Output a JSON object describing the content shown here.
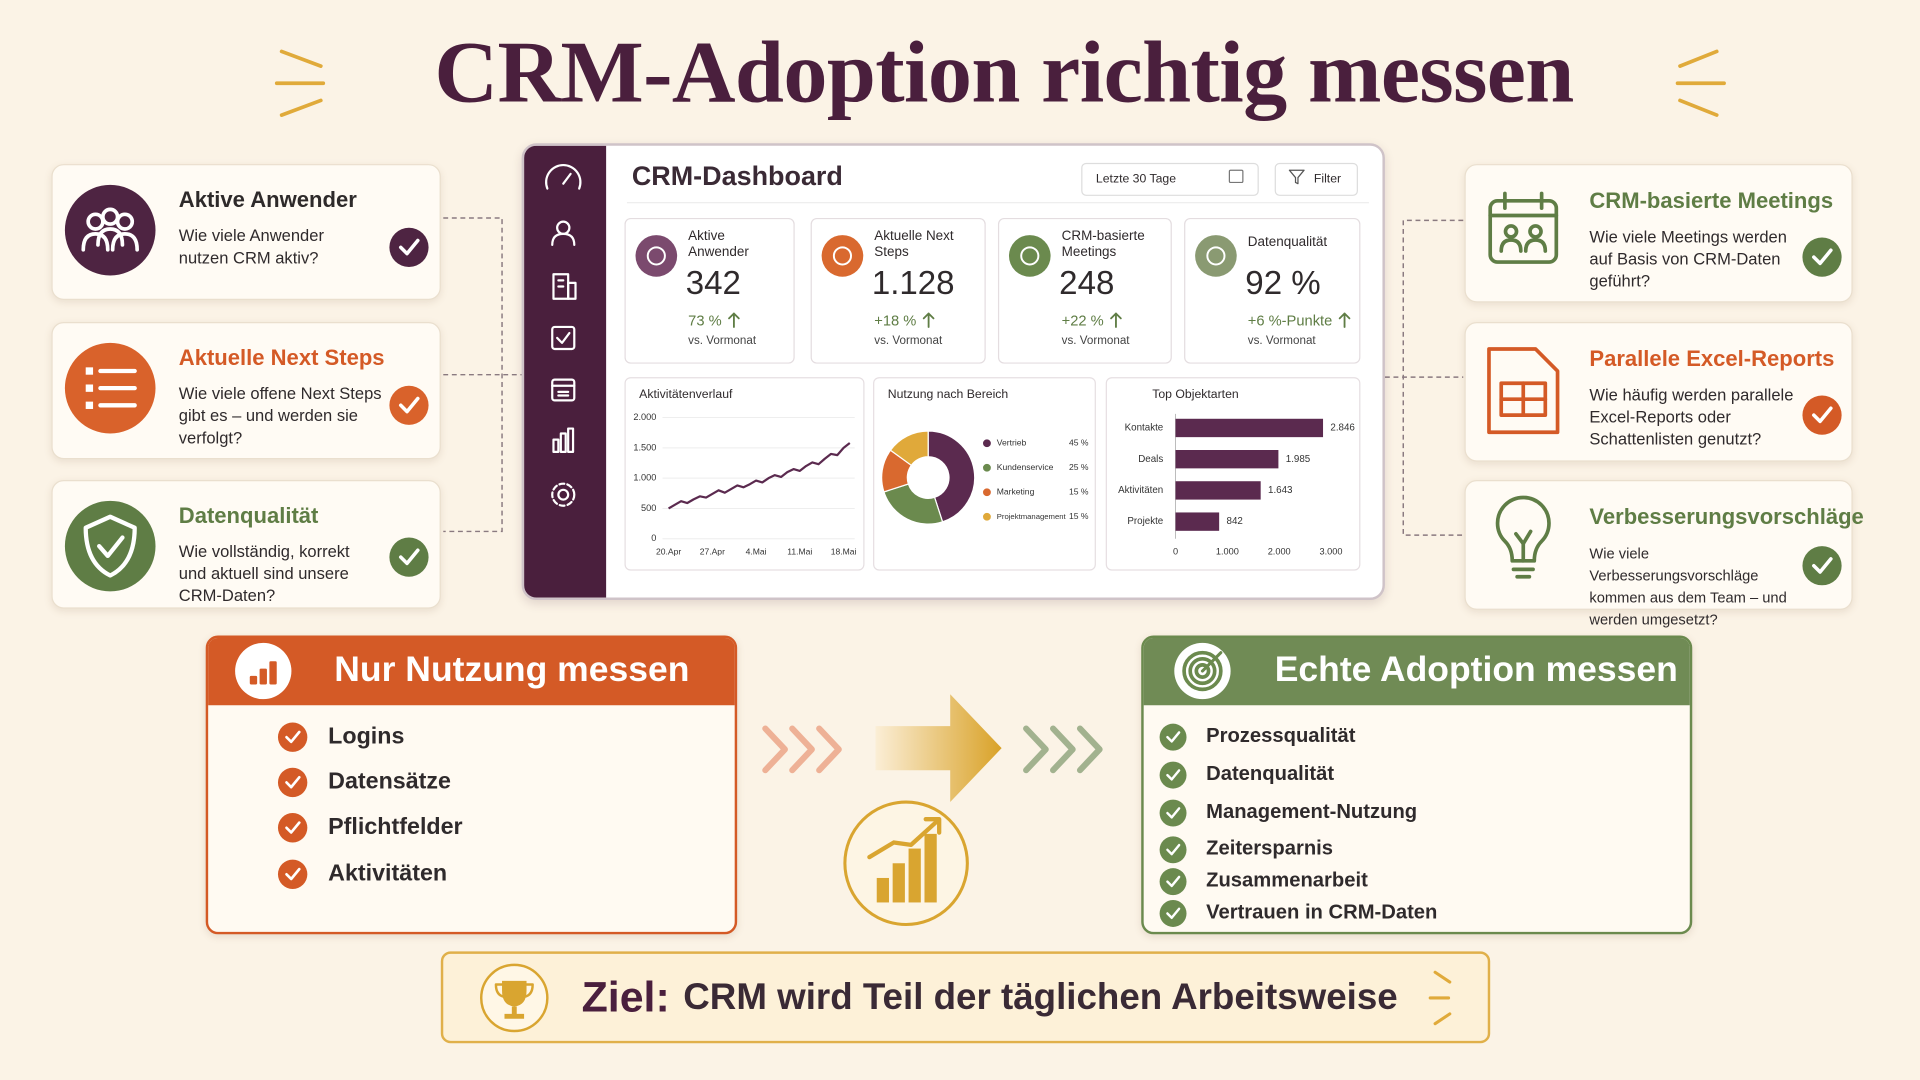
{
  "title": "CRM-Adoption richtig messen",
  "left_cards": [
    {
      "title": "Aktive Anwender",
      "text": "Wie viele Anwender nutzen CRM aktiv?"
    },
    {
      "title": "Aktuelle Next Steps",
      "text": "Wie viele offene Next Steps gibt es – und werden sie verfolgt?"
    },
    {
      "title": "Datenqualität",
      "text": "Wie vollständig, korrekt und aktuell sind unsere CRM-Daten?"
    }
  ],
  "right_cards": [
    {
      "title": "CRM-basierte Meetings",
      "text": "Wie viele Meetings werden auf Basis von CRM-Daten geführt?"
    },
    {
      "title": "Parallele Excel-Reports",
      "text": "Wie häufig werden parallele Excel-Reports oder Schattenlisten genutzt?"
    },
    {
      "title": "Verbesserungsvorschläge",
      "text": "Wie viele Verbesserungsvorschläge kommen aus dem Team – und werden umgesetzt?"
    }
  ],
  "dashboard": {
    "title": "CRM-Dashboard",
    "period": "Letzte 30 Tage",
    "filter": "Filter",
    "kpis": [
      {
        "label": "Aktive Anwender",
        "value": "342",
        "change": "73 %",
        "note": "vs. Vormonat"
      },
      {
        "label": "Aktuelle Next Steps",
        "value": "1.128",
        "change": "+18 %",
        "note": "vs. Vormonat"
      },
      {
        "label": "CRM-basierte Meetings",
        "value": "248",
        "change": "+22 %",
        "note": "vs. Vormonat"
      },
      {
        "label": "Datenqualität",
        "value": "92 %",
        "change": "+6 %-Punkte",
        "note": "vs. Vormonat"
      }
    ]
  },
  "chart_data": [
    {
      "type": "line",
      "title": "Aktivitätenverlauf",
      "categories": [
        "20.Apr",
        null,
        null,
        null,
        null,
        null,
        null,
        "27.Apr",
        null,
        null,
        null,
        null,
        null,
        null,
        "4.Mai",
        null,
        null,
        null,
        null,
        null,
        null,
        "11.Mai",
        null,
        null,
        null,
        null,
        null,
        null,
        "18.Mai",
        null
      ],
      "values": [
        500,
        560,
        620,
        590,
        650,
        700,
        680,
        740,
        800,
        760,
        820,
        880,
        850,
        900,
        960,
        930,
        1000,
        1050,
        1020,
        1100,
        1150,
        1120,
        1200,
        1260,
        1230,
        1320,
        1400,
        1380,
        1500,
        1580
      ],
      "color": "#5b2a4f",
      "ylim": [
        0,
        2000
      ],
      "yticks": [
        0,
        500,
        {
          "value": 1000,
          "label": "1.000"
        },
        {
          "value": 1500,
          "label": "1.500"
        },
        {
          "value": 2000,
          "label": "2.000"
        }
      ],
      "grid": true
    },
    {
      "type": "pie",
      "title": "Nutzung nach Bereich",
      "donut": true,
      "categories": [
        "Vertrieb",
        "Kundenservice",
        "Marketing",
        "Projektmanagement"
      ],
      "values": [
        45,
        25,
        15,
        15
      ],
      "value_labels": [
        "45 %",
        "25 %",
        "15 %",
        "15 %"
      ],
      "colors": [
        "#5b2a4f",
        "#6b8a4e",
        "#d9692f",
        "#e0a93a"
      ]
    },
    {
      "type": "bar",
      "orientation": "horizontal",
      "title": "Top Objektarten",
      "categories": [
        "Kontakte",
        "Deals",
        "Aktivitäten",
        "Projekte"
      ],
      "values": [
        2846,
        1985,
        1643,
        842
      ],
      "value_labels": [
        "2.846",
        "1.985",
        "1.643",
        "842"
      ],
      "color": "#5b2a4f",
      "xlim": [
        0,
        3000
      ],
      "xticks": [
        0,
        {
          "value": 1000,
          "label": "1.000"
        },
        {
          "value": 2000,
          "label": "2.000"
        },
        {
          "value": 3000,
          "label": "3.000"
        }
      ]
    }
  ],
  "usage_panel": {
    "title": "Nur Nutzung messen",
    "items": [
      "Logins",
      "Datensätze",
      "Pflichtfelder",
      "Aktivitäten"
    ]
  },
  "adoption_panel": {
    "title": "Echte Adoption messen",
    "items": [
      "Prozessqualität",
      "Datenqualität",
      "Management-Nutzung",
      "Zeitersparnis",
      "Zusammenarbeit",
      "Vertrauen in CRM-Daten"
    ]
  },
  "goal": {
    "label": "Ziel:",
    "text": "CRM wird Teil der täglichen Arbeitsweise"
  }
}
